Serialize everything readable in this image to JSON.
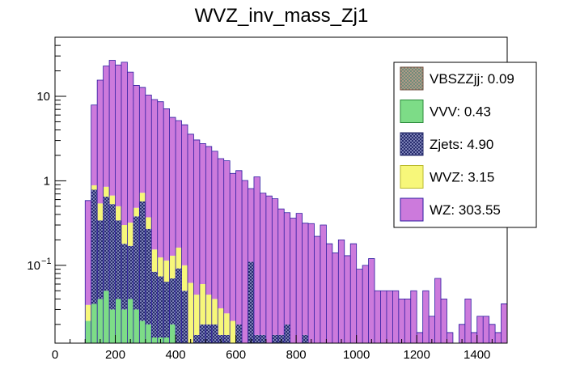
{
  "chart_data": {
    "type": "bar",
    "stacked": true,
    "title": "WVZ_inv_mass_Zj1",
    "xlabel": "",
    "ylabel": "",
    "xlim": [
      0,
      1500
    ],
    "ylim": [
      0.012,
      50
    ],
    "yscale": "log",
    "bin_width": 20,
    "x_ticks": [
      {
        "value": 0,
        "label": "0"
      },
      {
        "value": 200,
        "label": "200"
      },
      {
        "value": 400,
        "label": "400"
      },
      {
        "value": 600,
        "label": "600"
      },
      {
        "value": 800,
        "label": "800"
      },
      {
        "value": 1000,
        "label": "1000"
      },
      {
        "value": 1200,
        "label": "1200"
      },
      {
        "value": 1400,
        "label": "1400"
      }
    ],
    "y_ticks": [
      {
        "value": 0.1,
        "base": "10",
        "exp": "−1"
      },
      {
        "value": 1,
        "base": "1",
        "exp": ""
      },
      {
        "value": 10,
        "base": "10",
        "exp": ""
      }
    ],
    "legend_position": "top-right",
    "series": [
      {
        "name": "VBSZZjj",
        "label": "VBSZZjj: 0.09",
        "color": "#c8a08c",
        "pattern": "cross-hatch",
        "bins": []
      },
      {
        "name": "VVV",
        "label": "VVV: 0.43",
        "color": "#7ddc87",
        "pattern": "solid",
        "bins": [
          [
            100,
            0.022
          ],
          [
            120,
            0.035
          ],
          [
            140,
            0.04
          ],
          [
            160,
            0.05
          ],
          [
            180,
            0.03
          ],
          [
            200,
            0.04
          ],
          [
            220,
            0.03
          ],
          [
            240,
            0.04
          ],
          [
            260,
            0.03
          ],
          [
            280,
            0.022
          ],
          [
            300,
            0.02
          ],
          [
            320,
            0.014
          ],
          [
            340,
            0.014
          ],
          [
            360,
            0.014
          ],
          [
            380,
            0.02
          ],
          [
            400,
            0.012
          ]
        ]
      },
      {
        "name": "Zjets",
        "label": "Zjets: 4.90",
        "color": "#1f2466",
        "pattern": "cross-hatch",
        "bins": [
          [
            120,
            0.75
          ],
          [
            140,
            0.3
          ],
          [
            160,
            0.6
          ],
          [
            180,
            0.5
          ],
          [
            200,
            0.3
          ],
          [
            220,
            0.15
          ],
          [
            240,
            0.13
          ],
          [
            260,
            0.35
          ],
          [
            280,
            0.55
          ],
          [
            300,
            0.25
          ],
          [
            320,
            0.07
          ],
          [
            340,
            0.06
          ],
          [
            360,
            0.05
          ],
          [
            380,
            0.05
          ],
          [
            400,
            0.08
          ],
          [
            420,
            0.05
          ],
          [
            440,
            0.012
          ],
          [
            460,
            0.015
          ],
          [
            480,
            0.02
          ],
          [
            500,
            0.02
          ],
          [
            520,
            0.02
          ],
          [
            540,
            0.015
          ],
          [
            560,
            0.015
          ],
          [
            580,
            0.012
          ],
          [
            600,
            0.02
          ],
          [
            620,
            0.01
          ],
          [
            640,
            0.11
          ],
          [
            660,
            0.015
          ],
          [
            680,
            0.015
          ],
          [
            700,
            0.012
          ],
          [
            720,
            0.015
          ],
          [
            740,
            0.015
          ],
          [
            760,
            0.02
          ],
          [
            780,
            0.012
          ],
          [
            800,
            0.012
          ],
          [
            820,
            0.015
          ],
          [
            840,
            0.012
          ]
        ]
      },
      {
        "name": "WVZ",
        "label": "WVZ: 3.15",
        "color": "#f7f77a",
        "pattern": "solid",
        "bins": [
          [
            100,
            0.012
          ],
          [
            120,
            0.1
          ],
          [
            140,
            0.2
          ],
          [
            160,
            0.2
          ],
          [
            180,
            0.14
          ],
          [
            200,
            0.16
          ],
          [
            220,
            0.12
          ],
          [
            240,
            0.15
          ],
          [
            260,
            0.1
          ],
          [
            280,
            0.15
          ],
          [
            300,
            0.1
          ],
          [
            320,
            0.07
          ],
          [
            340,
            0.05
          ],
          [
            360,
            0.05
          ],
          [
            380,
            0.06
          ],
          [
            400,
            0.07
          ],
          [
            420,
            0.05
          ],
          [
            440,
            0.05
          ],
          [
            460,
            0.03
          ],
          [
            480,
            0.04
          ],
          [
            500,
            0.025
          ],
          [
            520,
            0.02
          ],
          [
            540,
            0.016
          ],
          [
            560,
            0.012
          ],
          [
            580,
            0.01
          ]
        ]
      },
      {
        "name": "WZ",
        "label": "WZ: 303.55",
        "color": "#cc7adc",
        "pattern": "solid",
        "bins": [
          [
            80,
            0.012
          ],
          [
            100,
            0.55
          ],
          [
            120,
            7.0
          ],
          [
            140,
            15
          ],
          [
            160,
            22
          ],
          [
            180,
            26
          ],
          [
            200,
            23
          ],
          [
            220,
            25
          ],
          [
            240,
            19
          ],
          [
            260,
            13
          ],
          [
            280,
            12
          ],
          [
            300,
            10
          ],
          [
            320,
            9
          ],
          [
            340,
            8.5
          ],
          [
            360,
            7.0
          ],
          [
            380,
            5.5
          ],
          [
            400,
            5.0
          ],
          [
            420,
            4.5
          ],
          [
            440,
            3.5
          ],
          [
            460,
            3.0
          ],
          [
            480,
            2.7
          ],
          [
            500,
            2.5
          ],
          [
            520,
            2.2
          ],
          [
            540,
            1.8
          ],
          [
            560,
            1.7
          ],
          [
            580,
            1.2
          ],
          [
            600,
            1.3
          ],
          [
            620,
            1.0
          ],
          [
            640,
            0.7
          ],
          [
            660,
            1.1
          ],
          [
            680,
            0.7
          ],
          [
            700,
            0.65
          ],
          [
            720,
            0.6
          ],
          [
            740,
            0.45
          ],
          [
            760,
            0.4
          ],
          [
            780,
            0.35
          ],
          [
            800,
            0.4
          ],
          [
            820,
            0.3
          ],
          [
            840,
            0.3
          ],
          [
            860,
            0.22
          ],
          [
            880,
            0.3
          ],
          [
            900,
            0.18
          ],
          [
            920,
            0.14
          ],
          [
            940,
            0.2
          ],
          [
            960,
            0.13
          ],
          [
            980,
            0.18
          ],
          [
            1000,
            0.09
          ],
          [
            1020,
            0.1
          ],
          [
            1040,
            0.12
          ],
          [
            1060,
            0.05
          ],
          [
            1080,
            0.05
          ],
          [
            1100,
            0.05
          ],
          [
            1120,
            0.05
          ],
          [
            1140,
            0.04
          ],
          [
            1160,
            0.04
          ],
          [
            1180,
            0.05
          ],
          [
            1200,
            0.016
          ],
          [
            1220,
            0.05
          ],
          [
            1240,
            0.025
          ],
          [
            1260,
            0.07
          ],
          [
            1280,
            0.04
          ],
          [
            1300,
            0.016
          ],
          [
            1320,
            0.012
          ],
          [
            1340,
            0.02
          ],
          [
            1360,
            0.04
          ],
          [
            1380,
            0.016
          ],
          [
            1400,
            0.025
          ],
          [
            1420,
            0.025
          ],
          [
            1440,
            0.02
          ],
          [
            1460,
            0.016
          ],
          [
            1480,
            0.035
          ]
        ]
      }
    ]
  }
}
